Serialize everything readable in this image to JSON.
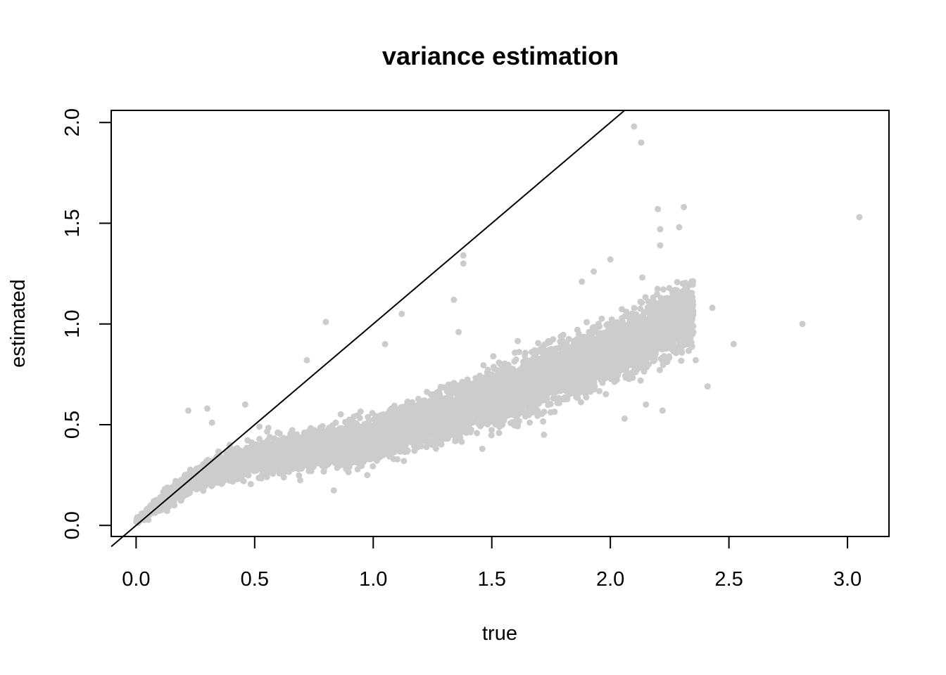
{
  "chart_data": {
    "type": "scatter",
    "title": "variance estimation",
    "xlabel": "true",
    "ylabel": "estimated",
    "xlim": [
      -0.105,
      3.175
    ],
    "ylim": [
      -0.055,
      2.06
    ],
    "x_ticks": [
      "0.0",
      "0.5",
      "1.0",
      "1.5",
      "2.0",
      "2.5",
      "3.0"
    ],
    "y_ticks": [
      "0.0",
      "0.5",
      "1.0",
      "1.5",
      "2.0"
    ],
    "grid": false,
    "point_color": "#cccccc",
    "reference_line": {
      "intercept": 0,
      "slope": 1,
      "color": "#000000"
    },
    "outliers": [
      {
        "x": 2.1,
        "y": 1.98
      },
      {
        "x": 2.13,
        "y": 1.9
      },
      {
        "x": 3.05,
        "y": 1.53
      },
      {
        "x": 2.81,
        "y": 1.0
      },
      {
        "x": 2.52,
        "y": 0.9
      },
      {
        "x": 2.41,
        "y": 0.69
      },
      {
        "x": 2.43,
        "y": 1.08
      },
      {
        "x": 1.38,
        "y": 1.34
      },
      {
        "x": 1.38,
        "y": 1.3
      },
      {
        "x": 1.34,
        "y": 1.12
      },
      {
        "x": 1.12,
        "y": 1.05
      },
      {
        "x": 0.8,
        "y": 1.01
      },
      {
        "x": 0.72,
        "y": 0.82
      },
      {
        "x": 1.05,
        "y": 0.9
      },
      {
        "x": 1.36,
        "y": 0.96
      },
      {
        "x": 1.72,
        "y": 0.45
      },
      {
        "x": 1.46,
        "y": 0.38
      },
      {
        "x": 2.15,
        "y": 0.6
      },
      {
        "x": 2.06,
        "y": 0.53
      },
      {
        "x": 2.2,
        "y": 1.57
      },
      {
        "x": 2.31,
        "y": 1.58
      },
      {
        "x": 2.29,
        "y": 1.48
      },
      {
        "x": 2.21,
        "y": 1.39
      },
      {
        "x": 2.21,
        "y": 1.47
      },
      {
        "x": 1.88,
        "y": 1.21
      },
      {
        "x": 1.93,
        "y": 1.26
      },
      {
        "x": 0.3,
        "y": 0.58
      },
      {
        "x": 0.46,
        "y": 0.6
      },
      {
        "x": 0.32,
        "y": 0.51
      },
      {
        "x": 0.22,
        "y": 0.57
      },
      {
        "x": 0.52,
        "y": 0.49
      },
      {
        "x": 2.36,
        "y": 0.82
      },
      {
        "x": 2.22,
        "y": 0.57
      },
      {
        "x": 2.0,
        "y": 1.32
      }
    ],
    "bulk_trend": [
      {
        "x": 0.0,
        "y": 0.02,
        "spread": 0.01
      },
      {
        "x": 0.1,
        "y": 0.11,
        "spread": 0.03
      },
      {
        "x": 0.25,
        "y": 0.23,
        "spread": 0.05
      },
      {
        "x": 0.5,
        "y": 0.33,
        "spread": 0.07
      },
      {
        "x": 0.75,
        "y": 0.38,
        "spread": 0.08
      },
      {
        "x": 1.0,
        "y": 0.42,
        "spread": 0.09
      },
      {
        "x": 1.25,
        "y": 0.53,
        "spread": 0.1
      },
      {
        "x": 1.5,
        "y": 0.62,
        "spread": 0.11
      },
      {
        "x": 1.75,
        "y": 0.75,
        "spread": 0.12
      },
      {
        "x": 2.0,
        "y": 0.86,
        "spread": 0.12
      },
      {
        "x": 2.25,
        "y": 1.0,
        "spread": 0.13
      },
      {
        "x": 2.35,
        "y": 1.05,
        "spread": 0.14
      }
    ],
    "bulk_count": 9000
  }
}
